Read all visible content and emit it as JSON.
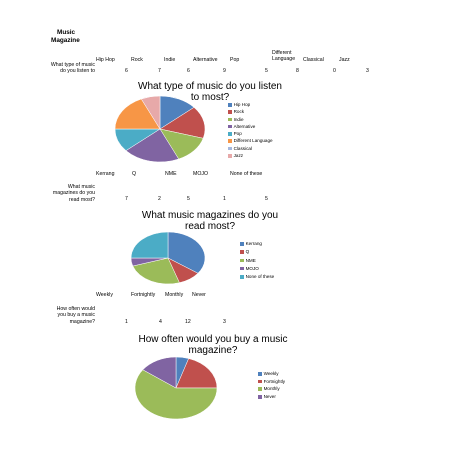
{
  "header": {
    "title_line1": "Music",
    "title_line2": "Magazine"
  },
  "survey": [
    {
      "question_lines": [
        "What type of music",
        "do you listen to"
      ],
      "categories": [
        "Hip Hop",
        "Rock",
        "Indie",
        "Alternative",
        "Pop",
        "Different Language",
        "Classical",
        "Jazz"
      ],
      "category_lines": [
        [
          "Hip Hop"
        ],
        [
          "Rock"
        ],
        [
          "Indie"
        ],
        [
          "Alternative"
        ],
        [
          "Pop"
        ],
        [
          "Different",
          "Language"
        ],
        [
          "Classical"
        ],
        [
          "Jazz"
        ]
      ],
      "counts": [
        "6",
        "7",
        "6",
        "9",
        "5",
        "8",
        "0",
        "3"
      ]
    },
    {
      "question_lines": [
        "What music",
        "magazines do you",
        "read most?"
      ],
      "categories": [
        "Kerrang",
        "Q",
        "NME",
        "MOJO",
        "None of these"
      ],
      "counts": [
        "7",
        "2",
        "5",
        "1",
        "5"
      ]
    },
    {
      "question_lines": [
        "How often would",
        "you buy a music",
        "magazine?"
      ],
      "categories": [
        "Weekly",
        "Fortnightly",
        "Monthly",
        "Never"
      ],
      "counts": [
        "1",
        "4",
        "12",
        "3"
      ]
    }
  ],
  "chart_data": [
    {
      "type": "pie",
      "title_lines": [
        "What type of music do you listen",
        "to most?"
      ],
      "legend_position": "right",
      "categories": [
        "Hip Hop",
        "Rock",
        "Indie",
        "Alternative",
        "Pop",
        "Different Language",
        "Classical",
        "Jazz"
      ],
      "values": [
        6,
        7,
        6,
        9,
        5,
        8,
        0,
        3
      ],
      "colors": [
        "#4F81BD",
        "#C0504D",
        "#9BBB59",
        "#8064A2",
        "#4BACC6",
        "#F79646",
        "#A5B8DE",
        "#E7A9A9"
      ]
    },
    {
      "type": "pie",
      "title_lines": [
        "What music magazines do you",
        "read most?"
      ],
      "legend_position": "right",
      "categories": [
        "Kerrang",
        "Q",
        "NME",
        "MOJO",
        "None of these"
      ],
      "values": [
        7,
        2,
        5,
        1,
        5
      ],
      "colors": [
        "#4F81BD",
        "#C0504D",
        "#9BBB59",
        "#8064A2",
        "#4BACC6"
      ]
    },
    {
      "type": "pie",
      "title_lines": [
        "How often would you buy a music",
        "magazine?"
      ],
      "legend_position": "right",
      "categories": [
        "Weekly",
        "Fortnightly",
        "Monthly",
        "Never"
      ],
      "values": [
        1,
        4,
        12,
        3
      ],
      "colors": [
        "#4F81BD",
        "#C0504D",
        "#9BBB59",
        "#8064A2"
      ]
    }
  ]
}
